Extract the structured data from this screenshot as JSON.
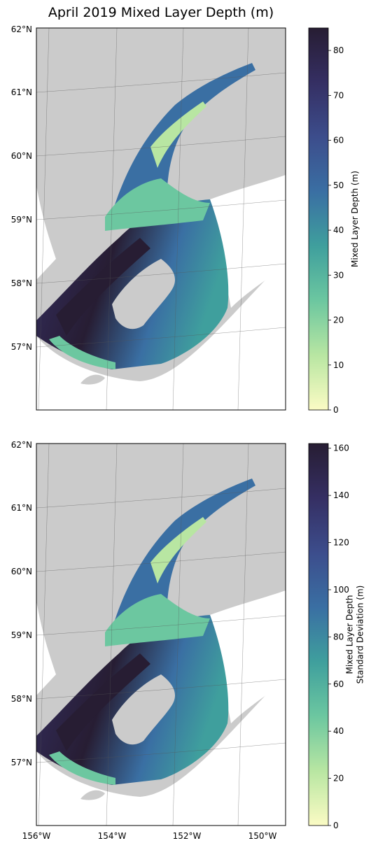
{
  "title": "April 2019 Mixed Layer Depth (m)",
  "lat_ticks": [
    "62°N",
    "61°N",
    "60°N",
    "59°N",
    "58°N",
    "57°N"
  ],
  "lon_ticks": [
    "156°W",
    "154°W",
    "152°W",
    "150°W"
  ],
  "panels": [
    {
      "colorbar_label": [
        "Mixed Layer Depth (m)"
      ],
      "colorbar_ticks": [
        0,
        10,
        20,
        30,
        40,
        50,
        60,
        70,
        80
      ],
      "vmax": 85
    },
    {
      "colorbar_label": [
        "Mixed Layer Depth",
        "Standard Deviation (m)"
      ],
      "colorbar_ticks": [
        0,
        20,
        40,
        60,
        80,
        100,
        120,
        140,
        160
      ],
      "vmax": 162
    }
  ],
  "colormap": [
    "#fbfbc4",
    "#b8e6a2",
    "#6cc7a0",
    "#3f9f9d",
    "#3a6fa3",
    "#3c4d8c",
    "#352f63",
    "#271d33"
  ],
  "land_color": "#cbcbcb",
  "water_color": "#ffffff"
}
